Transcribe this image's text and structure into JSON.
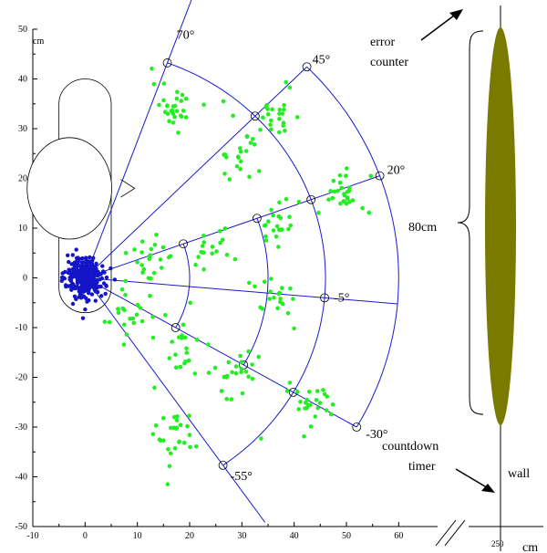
{
  "chart_data": {
    "type": "scatter",
    "x_unit": "cm",
    "y_unit": "cm",
    "xlim": [
      -10,
      65
    ],
    "ylim": [
      -50,
      50
    ],
    "x_ticks": [
      "-10",
      "0",
      "10",
      "20",
      "30",
      "40",
      "50",
      "60"
    ],
    "y_ticks": [
      "50",
      "40",
      "30",
      "20",
      "10",
      "0",
      "-10",
      "-20",
      "-30",
      "-40",
      "-50"
    ],
    "x_tick_values": [
      -10,
      0,
      10,
      20,
      30,
      40,
      50,
      60
    ],
    "y_tick_values": [
      50,
      40,
      30,
      20,
      10,
      0,
      -10,
      -20,
      -30,
      -40,
      -50
    ],
    "wall_x_label": "250",
    "angles": [
      {
        "label": "70°",
        "deg": 70
      },
      {
        "label": "45°",
        "deg": 45
      },
      {
        "label": "20°",
        "deg": 20
      },
      {
        "label": "-5°",
        "deg": -5
      },
      {
        "label": "-30°",
        "deg": -30
      },
      {
        "label": "-55°",
        "deg": -55
      }
    ],
    "ranges": [
      20,
      35,
      46,
      60
    ],
    "outer_radius": 60,
    "robot_center": [
      0,
      0
    ],
    "robot_cluster": {
      "n": 320,
      "center": [
        0,
        0
      ],
      "spread": [
        3.5,
        3.5
      ],
      "color": "#1414c8"
    },
    "green_clusters": [
      {
        "center": [
          17.5,
          34.5
        ],
        "n": 30
      },
      {
        "center": [
          36.5,
          33.5
        ],
        "n": 22
      },
      {
        "center": [
          29.5,
          24.0
        ],
        "n": 22
      },
      {
        "center": [
          49.0,
          17.0
        ],
        "n": 28
      },
      {
        "center": [
          36.5,
          10.5
        ],
        "n": 22
      },
      {
        "center": [
          24.5,
          6.0
        ],
        "n": 18
      },
      {
        "center": [
          13.0,
          4.0
        ],
        "n": 22
      },
      {
        "center": [
          36.0,
          -4.0
        ],
        "n": 20
      },
      {
        "center": [
          9.0,
          -7.0
        ],
        "n": 22
      },
      {
        "center": [
          19.5,
          -13.0
        ],
        "n": 22
      },
      {
        "center": [
          29.0,
          -19.0
        ],
        "n": 22
      },
      {
        "center": [
          43.5,
          -26.0
        ],
        "n": 26
      },
      {
        "center": [
          17.5,
          -31.0
        ],
        "n": 26
      }
    ],
    "green_color": "#22ee22",
    "line_color": "#1a1acc",
    "wall_color": "#7a7a00"
  },
  "labels": {
    "y_unit": "cm",
    "x_unit": "cm",
    "wall_label": "wall",
    "wall_height": "80cm",
    "error_counter_1": "error",
    "error_counter_2": "counter",
    "countdown_1": "countdown",
    "countdown_2": "timer"
  }
}
